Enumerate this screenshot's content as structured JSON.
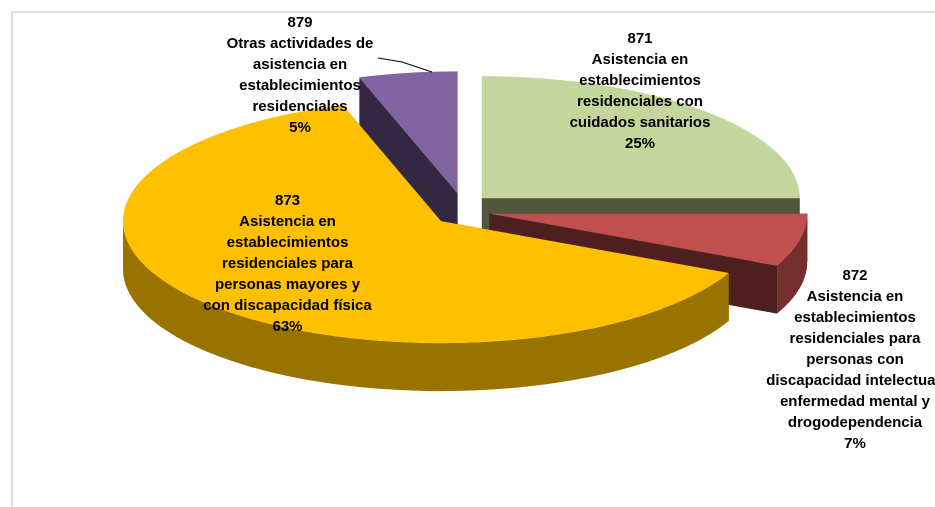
{
  "chart_data": {
    "type": "pie",
    "codes": [
      "871",
      "872",
      "873",
      "879"
    ],
    "categories": [
      "Asistencia en establecimientos residenciales con cuidados sanitarios",
      "Asistencia en establecimientos residenciales para personas con discapacidad intelectual, enfermedad mental y drogodependencia",
      "Asistencia en establecimientos residenciales para personas mayores y con discapacidad física",
      "Otras actividades de asistencia en establecimientos residenciales"
    ],
    "values": [
      25,
      7,
      63,
      5
    ],
    "value_labels": [
      "25%",
      "7%",
      "63%",
      "5%"
    ],
    "colors": [
      "#c3d69b",
      "#c0504d",
      "#ffc000",
      "#8064a2"
    ]
  }
}
